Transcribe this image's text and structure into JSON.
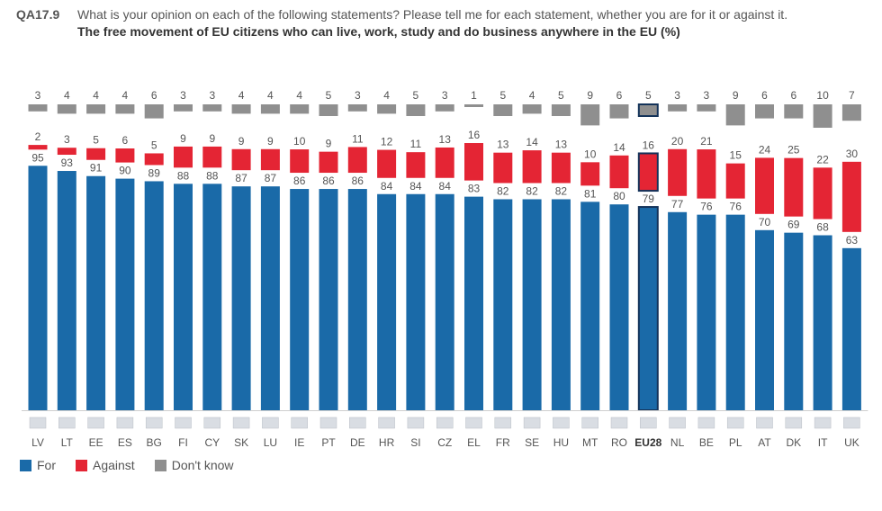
{
  "header": {
    "code": "QA17.9",
    "question": "What is your opinion on each of the following statements? Please tell me for each statement, whether you are for it or against it.",
    "subtitle": "The free movement of EU citizens who can live, work, study and do business anywhere in the EU (%)"
  },
  "legend": {
    "for": "For",
    "against": "Against",
    "dont_know": "Don't know"
  },
  "colors": {
    "for": "#1a6aa8",
    "against": "#e42534",
    "dont_know": "#8f8f8f",
    "highlight_border": "#14335a"
  },
  "chart_data": {
    "type": "bar",
    "stacked": true,
    "categories": [
      "LV",
      "LT",
      "EE",
      "ES",
      "BG",
      "FI",
      "CY",
      "SK",
      "LU",
      "IE",
      "PT",
      "DE",
      "HR",
      "SI",
      "CZ",
      "EL",
      "FR",
      "SE",
      "HU",
      "MT",
      "RO",
      "EU28",
      "NL",
      "BE",
      "PL",
      "AT",
      "DK",
      "IT",
      "UK"
    ],
    "highlight": "EU28",
    "series": [
      {
        "name": "For",
        "values": [
          95,
          93,
          91,
          90,
          89,
          88,
          88,
          87,
          87,
          86,
          86,
          86,
          84,
          84,
          84,
          83,
          82,
          82,
          82,
          81,
          80,
          79,
          77,
          76,
          76,
          70,
          69,
          68,
          63
        ]
      },
      {
        "name": "Against",
        "values": [
          2,
          3,
          5,
          6,
          5,
          9,
          9,
          9,
          9,
          10,
          9,
          11,
          12,
          11,
          13,
          16,
          13,
          14,
          13,
          10,
          14,
          16,
          20,
          21,
          15,
          24,
          25,
          22,
          30
        ]
      },
      {
        "name": "Don't know",
        "values": [
          3,
          4,
          4,
          4,
          6,
          3,
          3,
          4,
          4,
          4,
          5,
          3,
          4,
          5,
          3,
          1,
          5,
          4,
          5,
          9,
          6,
          5,
          3,
          3,
          9,
          6,
          6,
          10,
          7
        ]
      }
    ],
    "ylim": [
      0,
      100
    ]
  }
}
